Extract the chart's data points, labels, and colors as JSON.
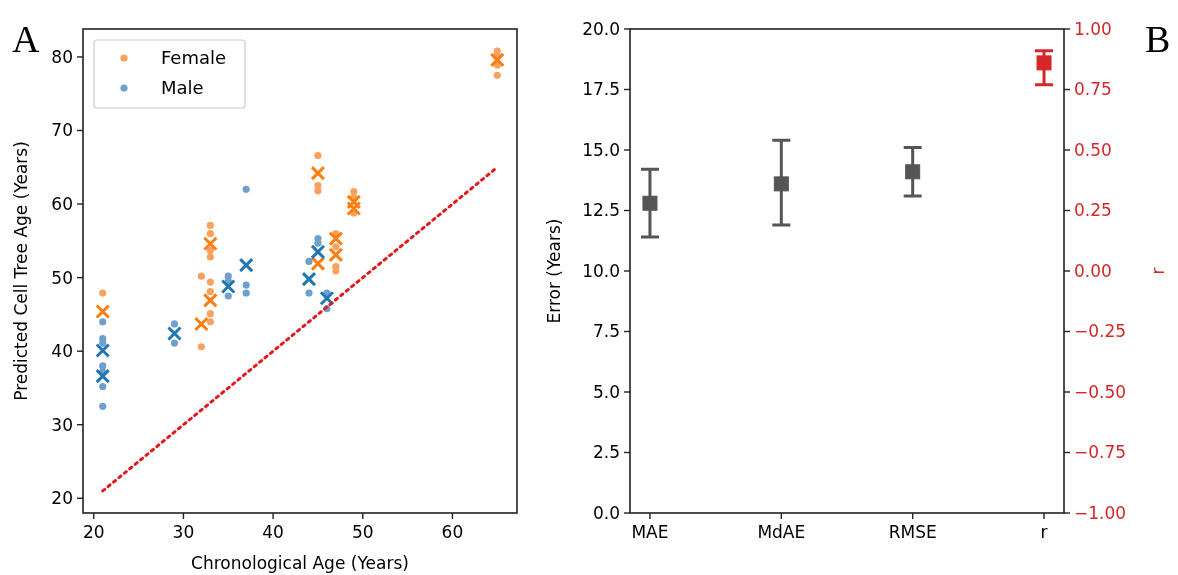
{
  "chart_data": [
    {
      "type": "scatter",
      "annotations": [
        "A"
      ],
      "xlabel": "Chronological Age (Years)",
      "ylabel": "Predicted Cell Tree Age (Years)",
      "xlim": [
        18.8,
        67.2
      ],
      "ylim": [
        18.0,
        83.8
      ],
      "xticks": [
        20,
        30,
        40,
        50,
        60
      ],
      "yticks": [
        20,
        30,
        40,
        50,
        60,
        70,
        80
      ],
      "legend": "top left",
      "marker": "circle",
      "series": [
        {
          "name": "Female",
          "color": "#f9a25f",
          "x": [
            21,
            32,
            32,
            33,
            33,
            33,
            33,
            33,
            33,
            33,
            33,
            45,
            45,
            45,
            47,
            47,
            47,
            47,
            49,
            49,
            49,
            65,
            65,
            65,
            65
          ],
          "values": [
            47.9,
            50.2,
            40.6,
            57.1,
            56.0,
            53.7,
            52.8,
            49.4,
            48.1,
            45.1,
            44.0,
            66.6,
            62.5,
            61.8,
            56.0,
            54.2,
            51.5,
            50.9,
            61.7,
            60.9,
            58.8,
            80.8,
            80.2,
            78.9,
            77.5
          ]
        },
        {
          "name": "Male",
          "color": "#6f9fcb",
          "x": [
            21,
            21,
            21,
            21,
            21,
            21,
            21,
            29,
            29,
            35,
            35,
            35,
            37,
            37,
            37,
            44,
            44,
            45,
            45,
            46,
            46
          ],
          "values": [
            44.0,
            41.7,
            41.1,
            38.0,
            37.2,
            35.2,
            32.5,
            43.7,
            41.1,
            50.2,
            49.5,
            47.5,
            62.0,
            49.0,
            47.9,
            52.2,
            47.9,
            55.3,
            54.7,
            47.9,
            45.8
          ]
        },
        {
          "color": "#ff7f0e",
          "marker": "cross",
          "x": [
            21,
            32,
            33,
            33,
            45,
            45,
            47,
            47,
            49,
            49,
            65
          ],
          "values": [
            45.4,
            43.7,
            54.6,
            46.9,
            64.2,
            51.9,
            55.3,
            53.1,
            60.3,
            59.4,
            79.6
          ]
        },
        {
          "color": "#1f77b4",
          "marker": "cross",
          "x": [
            21,
            21,
            29,
            35,
            37,
            44,
            45,
            46
          ],
          "values": [
            40.1,
            36.6,
            42.4,
            48.8,
            51.7,
            49.8,
            53.5,
            47.2
          ]
        },
        {
          "type": "line",
          "color": "#e31a1c",
          "line_style": "dotted",
          "marker": "none",
          "x": [
            21,
            65
          ],
          "values": [
            21,
            65
          ]
        }
      ]
    },
    {
      "type": "scatter",
      "annotations": [
        "B"
      ],
      "ylabel": "Error (Years)",
      "y2label": "r",
      "categories": [
        "MAE",
        "MdAE",
        "RMSE",
        "r"
      ],
      "ylim": [
        0,
        20
      ],
      "yticks": [
        {
          "value": 0,
          "label": "0.0"
        },
        {
          "value": 2.5,
          "label": "2.5"
        },
        {
          "value": 5,
          "label": "5.0"
        },
        {
          "value": 7.5,
          "label": "7.5"
        },
        {
          "value": 10,
          "label": "10.0"
        },
        {
          "value": 12.5,
          "label": "12.5"
        },
        {
          "value": 15,
          "label": "15.0"
        },
        {
          "value": 17.5,
          "label": "17.5"
        },
        {
          "value": 20,
          "label": "20.0"
        }
      ],
      "y2lim": [
        -1,
        1
      ],
      "y2ticks": [
        {
          "value": -1,
          "label": "−1.00"
        },
        {
          "value": -0.75,
          "label": "−0.75"
        },
        {
          "value": -0.5,
          "label": "−0.50"
        },
        {
          "value": -0.25,
          "label": "−0.25"
        },
        {
          "value": 0,
          "label": "0.00"
        },
        {
          "value": 0.25,
          "label": "0.25"
        },
        {
          "value": 0.5,
          "label": "0.50"
        },
        {
          "value": 0.75,
          "label": "0.75"
        },
        {
          "value": 1,
          "label": "1.00"
        }
      ],
      "marker": "square",
      "series": [
        {
          "color": "#555555",
          "values": [
            12.8,
            13.6,
            14.1,
            null
          ],
          "errors": [
            [
              11.4,
              14.2
            ],
            [
              11.9,
              15.4
            ],
            [
              13.1,
              15.1
            ],
            null
          ]
        },
        {
          "color": "#d62728",
          "axis": "y2",
          "values": [
            null,
            null,
            null,
            0.86
          ],
          "errors": [
            null,
            null,
            null,
            [
              0.77,
              0.91
            ]
          ]
        }
      ]
    }
  ]
}
